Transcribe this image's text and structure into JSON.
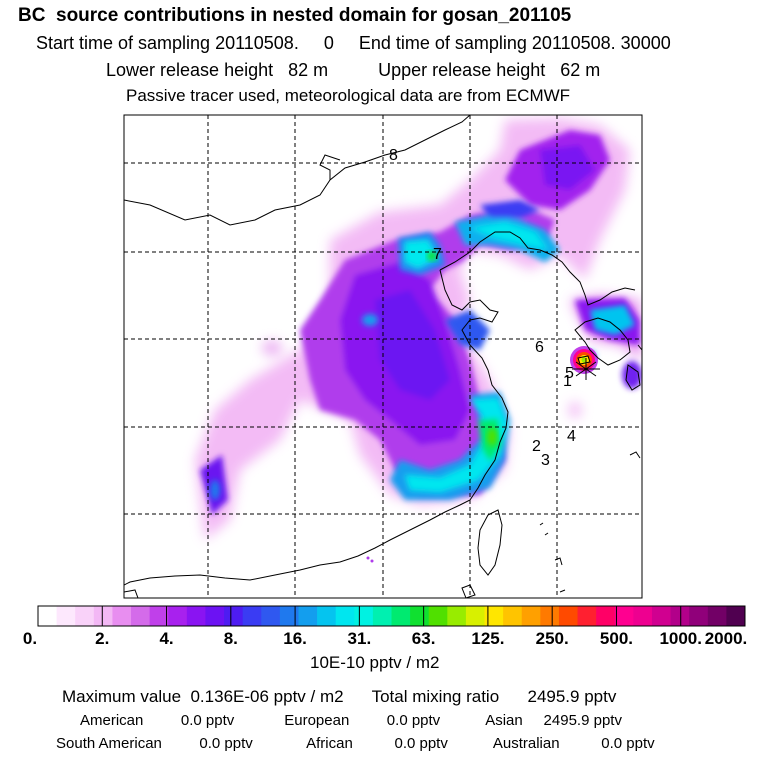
{
  "header": {
    "title": "BC  source contributions in nested domain for gosan_201105",
    "line1": "Start time of sampling 20110508.     0     End time of sampling 20110508. 30000",
    "line2": "Lower release height   82 m          Upper release height   62 m",
    "line3": "Passive tracer used, meteorological data are from ECMWF"
  },
  "map": {
    "markers": [
      {
        "label": "8"
      },
      {
        "label": "7"
      },
      {
        "label": "6"
      },
      {
        "label": "5"
      },
      {
        "label": "1"
      },
      {
        "label": "4"
      },
      {
        "label": "2"
      },
      {
        "label": "3"
      }
    ],
    "release_site_icon": "star-icon"
  },
  "colorbar": {
    "tick_labels": [
      "0.",
      "2.",
      "4.",
      "8.",
      "16.",
      "31.",
      "63.",
      "125.",
      "250.",
      "500.",
      "1000.",
      "2000."
    ],
    "colors": [
      "#ffffff",
      "#fde8fd",
      "#f9d2f9",
      "#f3b8f5",
      "#e88ef0",
      "#d46bea",
      "#c040ea",
      "#a821ee",
      "#8a14f2",
      "#6c12f3",
      "#4e1cf2",
      "#3a3cf3",
      "#2f58f0",
      "#1f79ee",
      "#139eee",
      "#05c4ef",
      "#00e6ef",
      "#00f2e2",
      "#00f0b0",
      "#00ea70",
      "#10e030",
      "#50e000",
      "#98ec00",
      "#d8f000",
      "#ffe600",
      "#ffc400",
      "#ffa000",
      "#ff7a00",
      "#ff4a00",
      "#ff2030",
      "#ff0066",
      "#ff0090",
      "#ee0090",
      "#d00090",
      "#b2008a",
      "#90007a",
      "#720066",
      "#500050"
    ],
    "unit_label": "10E-10 pptv / m2"
  },
  "summary": {
    "line1": "Maximum value  0.136E-06 pptv / m2      Total mixing ratio      2495.9 pptv",
    "line2": "American         0.0 pptv            European         0.0 pptv           Asian     2495.9 pptv",
    "line3": "South American         0.0 pptv             African          0.0 pptv           Australian          0.0 pptv"
  }
}
